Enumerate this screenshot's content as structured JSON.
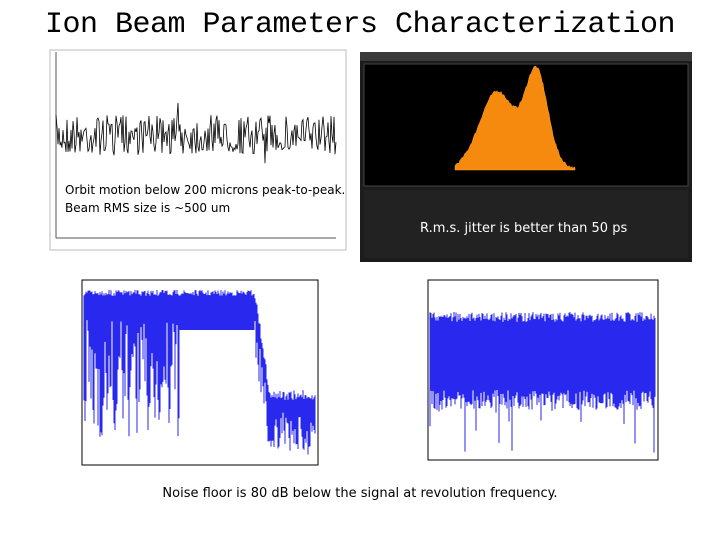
{
  "header": {
    "title": "Ion Beam Parameters Characterization"
  },
  "captions": {
    "orbit": [
      "Orbit motion below 200 microns peak-to-peak.",
      "Beam RMS size is ~500 um"
    ],
    "jitter": "R.m.s. jitter is better than 50 ps",
    "noise": "Noise floor is 80 dB below the signal at revolution frequency."
  }
}
